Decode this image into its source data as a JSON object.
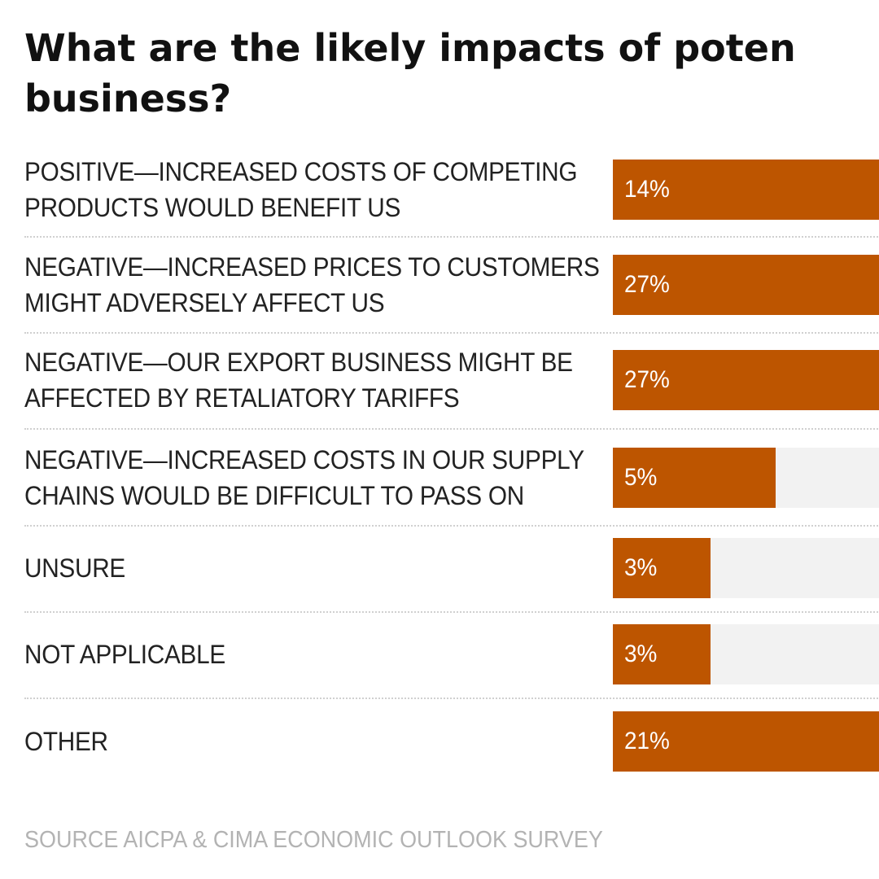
{
  "title_lines": [
    "What are the likely impacts of poten",
    "business?"
  ],
  "source": "SOURCE AICPA & CIMA ECONOMIC OUTLOOK SURVEY",
  "colors": {
    "bar": "#bd5500",
    "track": "#f2f2f2",
    "text": "#222222",
    "source": "#b3b3b3"
  },
  "chart_data": {
    "type": "bar",
    "orientation": "horizontal",
    "title": "What are the likely impacts of poten business?",
    "categories": [
      "POSITIVE—INCREASED COSTS OF COMPETING PRODUCTS WOULD BENEFIT US",
      "NEGATIVE—INCREASED PRICES TO CUSTOMERS MIGHT ADVERSELY AFFECT US",
      "NEGATIVE—OUR EXPORT BUSINESS MIGHT BE AFFECTED BY RETALIATORY TARIFFS",
      "NEGATIVE—INCREASED COSTS IN OUR SUPPLY CHAINS WOULD BE DIFFICULT TO PASS ON",
      "UNSURE",
      "NOT APPLICABLE",
      "OTHER"
    ],
    "label_lines": [
      [
        "POSITIVE—INCREASED COSTS OF COMPETING",
        "PRODUCTS WOULD BENEFIT US"
      ],
      [
        "NEGATIVE—INCREASED PRICES TO CUSTOMERS",
        "MIGHT ADVERSELY AFFECT US"
      ],
      [
        "NEGATIVE—OUR EXPORT BUSINESS MIGHT BE",
        "AFFECTED BY RETALIATORY TARIFFS"
      ],
      [
        "NEGATIVE—INCREASED COSTS IN OUR SUPPLY",
        "CHAINS WOULD BE DIFFICULT TO PASS ON"
      ],
      [
        "UNSURE"
      ],
      [
        "NOT APPLICABLE"
      ],
      [
        "OTHER"
      ]
    ],
    "values": [
      14,
      27,
      27,
      5,
      3,
      3,
      21
    ],
    "value_labels": [
      "14%",
      "27%",
      "27%",
      "5%",
      "3%",
      "3%",
      "21%"
    ],
    "xlabel": "",
    "ylabel": "",
    "xlim": [
      0,
      100
    ]
  }
}
